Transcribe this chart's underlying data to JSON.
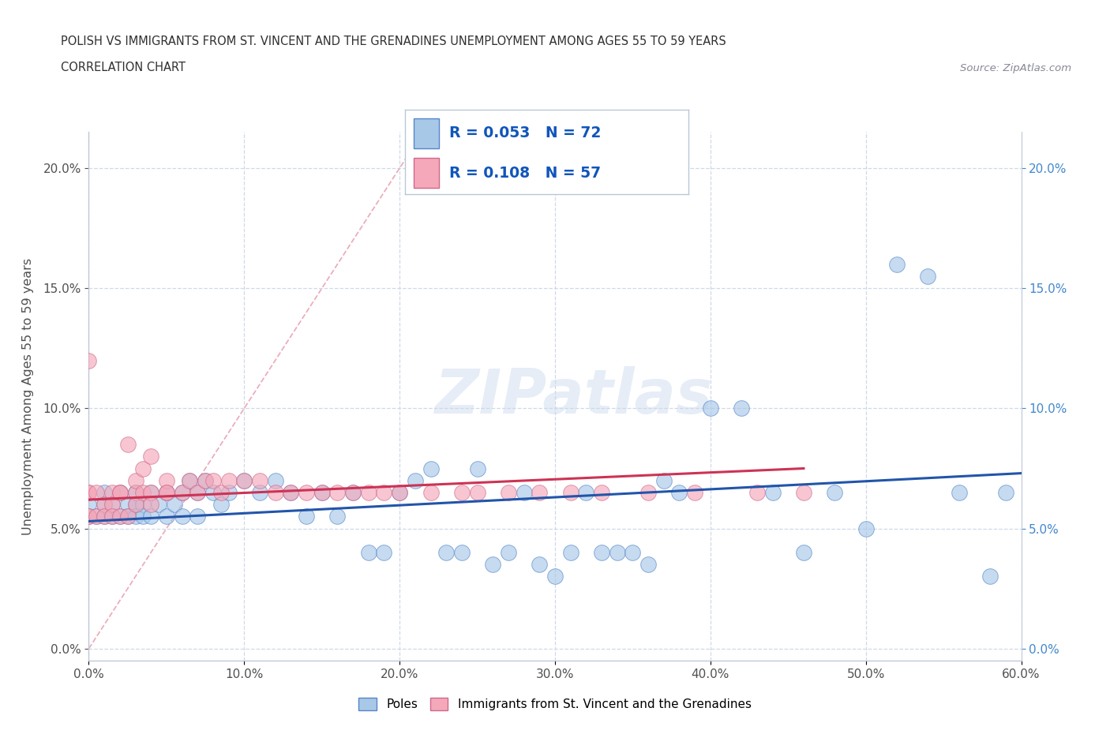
{
  "title_line1": "POLISH VS IMMIGRANTS FROM ST. VINCENT AND THE GRENADINES UNEMPLOYMENT AMONG AGES 55 TO 59 YEARS",
  "title_line2": "CORRELATION CHART",
  "source_text": "Source: ZipAtlas.com",
  "ylabel": "Unemployment Among Ages 55 to 59 years",
  "xlim": [
    0.0,
    0.6
  ],
  "ylim": [
    -0.005,
    0.215
  ],
  "x_ticks": [
    0.0,
    0.1,
    0.2,
    0.3,
    0.4,
    0.5,
    0.6
  ],
  "x_tick_labels": [
    "0.0%",
    "10.0%",
    "20.0%",
    "30.0%",
    "40.0%",
    "50.0%",
    "60.0%"
  ],
  "y_ticks": [
    0.0,
    0.05,
    0.1,
    0.15,
    0.2
  ],
  "y_tick_labels": [
    "0.0%",
    "5.0%",
    "10.0%",
    "15.0%",
    "20.0%"
  ],
  "watermark": "ZIPatlas",
  "r1_val": "0.053",
  "n1_val": "72",
  "r2_val": "0.108",
  "n2_val": "57",
  "color_poles": "#a8c8e8",
  "color_poles_edge": "#5585c8",
  "color_svg": "#f4a8ba",
  "color_svg_edge": "#d06888",
  "trend_poles_color": "#2255aa",
  "trend_svg_color": "#cc3355",
  "diag_line_color": "#e8a0b0",
  "background_color": "#ffffff",
  "grid_color": "#d0d8e8",
  "font_color_title": "#303030",
  "font_color_axis": "#505050",
  "right_tick_color": "#4488cc",
  "poles_x": [
    0.0,
    0.0,
    0.005,
    0.01,
    0.01,
    0.01,
    0.015,
    0.015,
    0.02,
    0.02,
    0.025,
    0.025,
    0.03,
    0.03,
    0.03,
    0.035,
    0.035,
    0.04,
    0.04,
    0.045,
    0.05,
    0.05,
    0.055,
    0.06,
    0.06,
    0.065,
    0.07,
    0.07,
    0.075,
    0.08,
    0.085,
    0.09,
    0.1,
    0.11,
    0.12,
    0.13,
    0.14,
    0.15,
    0.16,
    0.17,
    0.18,
    0.19,
    0.2,
    0.21,
    0.22,
    0.23,
    0.24,
    0.25,
    0.26,
    0.27,
    0.28,
    0.29,
    0.3,
    0.31,
    0.32,
    0.33,
    0.34,
    0.35,
    0.36,
    0.37,
    0.38,
    0.4,
    0.42,
    0.44,
    0.46,
    0.48,
    0.5,
    0.52,
    0.54,
    0.56,
    0.58,
    0.59
  ],
  "poles_y": [
    0.055,
    0.06,
    0.055,
    0.06,
    0.055,
    0.065,
    0.055,
    0.06,
    0.055,
    0.065,
    0.06,
    0.055,
    0.06,
    0.065,
    0.055,
    0.06,
    0.055,
    0.065,
    0.055,
    0.06,
    0.065,
    0.055,
    0.06,
    0.065,
    0.055,
    0.07,
    0.065,
    0.055,
    0.07,
    0.065,
    0.06,
    0.065,
    0.07,
    0.065,
    0.07,
    0.065,
    0.055,
    0.065,
    0.055,
    0.065,
    0.04,
    0.04,
    0.065,
    0.07,
    0.075,
    0.04,
    0.04,
    0.075,
    0.035,
    0.04,
    0.065,
    0.035,
    0.03,
    0.04,
    0.065,
    0.04,
    0.04,
    0.04,
    0.035,
    0.07,
    0.065,
    0.1,
    0.1,
    0.065,
    0.04,
    0.065,
    0.05,
    0.16,
    0.155,
    0.065,
    0.03,
    0.065
  ],
  "svg_x": [
    0.0,
    0.0,
    0.0,
    0.0,
    0.0,
    0.005,
    0.005,
    0.01,
    0.01,
    0.015,
    0.015,
    0.015,
    0.02,
    0.02,
    0.02,
    0.025,
    0.025,
    0.03,
    0.03,
    0.03,
    0.035,
    0.035,
    0.04,
    0.04,
    0.04,
    0.05,
    0.05,
    0.05,
    0.06,
    0.065,
    0.07,
    0.075,
    0.08,
    0.085,
    0.09,
    0.1,
    0.11,
    0.12,
    0.13,
    0.14,
    0.15,
    0.16,
    0.17,
    0.18,
    0.19,
    0.2,
    0.22,
    0.24,
    0.25,
    0.27,
    0.29,
    0.31,
    0.33,
    0.36,
    0.39,
    0.43,
    0.46
  ],
  "svg_y": [
    0.055,
    0.065,
    0.055,
    0.065,
    0.12,
    0.055,
    0.065,
    0.06,
    0.055,
    0.065,
    0.06,
    0.055,
    0.065,
    0.055,
    0.065,
    0.055,
    0.085,
    0.065,
    0.07,
    0.06,
    0.075,
    0.065,
    0.065,
    0.06,
    0.08,
    0.065,
    0.07,
    0.065,
    0.065,
    0.07,
    0.065,
    0.07,
    0.07,
    0.065,
    0.07,
    0.07,
    0.07,
    0.065,
    0.065,
    0.065,
    0.065,
    0.065,
    0.065,
    0.065,
    0.065,
    0.065,
    0.065,
    0.065,
    0.065,
    0.065,
    0.065,
    0.065,
    0.065,
    0.065,
    0.065,
    0.065,
    0.065
  ],
  "poles_trend_x": [
    0.0,
    0.6
  ],
  "poles_trend_y": [
    0.053,
    0.073
  ],
  "svg_trend_x": [
    0.0,
    0.46
  ],
  "svg_trend_y": [
    0.062,
    0.075
  ]
}
